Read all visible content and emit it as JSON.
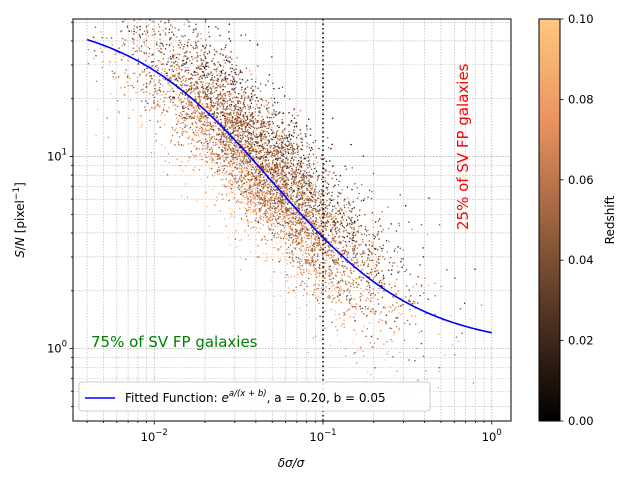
{
  "chart_data": {
    "type": "scatter",
    "x_scale": "log",
    "y_scale": "log",
    "xlim": [
      0.0033,
      1.3
    ],
    "ylim": [
      0.42,
      52
    ],
    "x_ticks": [
      {
        "value": 0.01,
        "base": "10",
        "exp": "−2"
      },
      {
        "value": 0.1,
        "base": "10",
        "exp": "−1"
      },
      {
        "value": 1,
        "base": "10",
        "exp": "0"
      }
    ],
    "y_ticks": [
      {
        "value": 1,
        "base": "10",
        "exp": "0"
      },
      {
        "value": 10,
        "base": "10",
        "exp": "1"
      }
    ],
    "xlabel": "δσ/σ",
    "ylabel": {
      "main": "S/N [pixel",
      "sup": "−1",
      "close": "]"
    },
    "grid": true,
    "vline": {
      "x": 0.1,
      "style": "dotted",
      "color": "#000000"
    },
    "fit": {
      "a": 0.2,
      "b": 0.05,
      "color": "#0000ff",
      "x_range": [
        0.004,
        1.0
      ]
    },
    "scatter": {
      "n_points": 6000,
      "colormap": "copper",
      "x_range": [
        0.004,
        1.0
      ],
      "z_range": [
        0.0,
        0.1
      ]
    },
    "colorbar": {
      "label": "Redshift",
      "min": 0.0,
      "max": 0.1,
      "ticks": [
        "0.00",
        "0.02",
        "0.04",
        "0.06",
        "0.08",
        "0.10"
      ]
    },
    "annotations": [
      {
        "text": "75% of SV FP galaxies",
        "color": "#008000",
        "orientation": "horizontal"
      },
      {
        "text": "25% of SV FP galaxies",
        "color": "#ff0000",
        "orientation": "vertical"
      }
    ],
    "legend": {
      "placement": "lower-left",
      "label_prefix": "Fitted Function: ",
      "formula_base": "e",
      "formula_exp": "a/(x + b)",
      "label_suffix": ", a = 0.20, b = 0.05"
    }
  }
}
